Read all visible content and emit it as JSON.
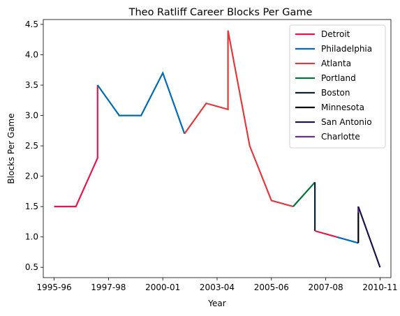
{
  "chart_data": {
    "type": "line",
    "title": "Theo Ratliff Career Blocks Per Game",
    "xlabel": "Year",
    "ylabel": "Blocks Per Game",
    "xlim": [
      -0.5,
      15.5
    ],
    "ylim": [
      0.33,
      4.58
    ],
    "x_ticks": [
      {
        "x": 0,
        "label": "1995-96"
      },
      {
        "x": 2.5,
        "label": "1997-98"
      },
      {
        "x": 5,
        "label": "2000-01"
      },
      {
        "x": 7.5,
        "label": "2003-04"
      },
      {
        "x": 10,
        "label": "2005-06"
      },
      {
        "x": 12.5,
        "label": "2007-08"
      },
      {
        "x": 15,
        "label": "2010-11"
      }
    ],
    "y_ticks": [
      0.5,
      1.0,
      1.5,
      2.0,
      2.5,
      3.0,
      3.5,
      4.0,
      4.5
    ],
    "y_tick_labels": [
      "0.5",
      "1.0",
      "1.5",
      "2.0",
      "2.5",
      "3.0",
      "3.5",
      "4.0",
      "4.5"
    ],
    "grid": false,
    "legend_position": "top-right",
    "series": [
      {
        "name": "Detroit",
        "color": "#e8174a",
        "points": [
          [
            0,
            1.5
          ],
          [
            1,
            1.5
          ],
          [
            2,
            2.3
          ],
          [
            2,
            3.5
          ]
        ]
      },
      {
        "name": "Philadelphia",
        "color": "#006bb6",
        "points": [
          [
            2,
            3.5
          ],
          [
            3,
            3.0
          ],
          [
            4,
            3.0
          ],
          [
            5,
            3.7
          ],
          [
            6,
            2.7
          ]
        ]
      },
      {
        "name": "Atlanta",
        "color": "#e03a3e",
        "points": [
          [
            6,
            2.7
          ],
          [
            7,
            3.2
          ],
          [
            8,
            3.1
          ],
          [
            8,
            4.4
          ],
          [
            9,
            2.5
          ],
          [
            10,
            1.6
          ],
          [
            11,
            1.5
          ]
        ]
      },
      {
        "name": "Portland",
        "color": "#00713a",
        "points": [
          [
            11,
            1.5
          ],
          [
            12,
            1.9
          ]
        ]
      },
      {
        "name": "Boston",
        "color": "#0c2233",
        "points": [
          [
            12,
            1.9
          ],
          [
            12,
            1.1
          ]
        ]
      },
      {
        "name": "Detroit",
        "color": "#e8174a",
        "points": [
          [
            12,
            1.1
          ],
          [
            13,
            1.0
          ]
        ]
      },
      {
        "name": "Philadelphia",
        "color": "#006bb6",
        "points": [
          [
            13,
            1.0
          ],
          [
            14,
            0.9
          ]
        ]
      },
      {
        "name": "Minnesota",
        "color": "#000000",
        "points": [
          [
            14,
            0.9
          ],
          [
            14,
            1.5
          ]
        ]
      },
      {
        "name": "Charlotte",
        "color": "#6b2e92",
        "points": [
          [
            14,
            1.5
          ],
          [
            14,
            1.4
          ]
        ]
      },
      {
        "name": "San Antonio",
        "color": "#1b1448",
        "points": [
          [
            14,
            1.5
          ],
          [
            15,
            0.5
          ]
        ]
      }
    ],
    "legend": [
      {
        "name": "Detroit",
        "color": "#e8174a"
      },
      {
        "name": "Philadelphia",
        "color": "#006bb6"
      },
      {
        "name": "Atlanta",
        "color": "#e03a3e"
      },
      {
        "name": "Portland",
        "color": "#00713a"
      },
      {
        "name": "Boston",
        "color": "#0c2233"
      },
      {
        "name": "Minnesota",
        "color": "#000000"
      },
      {
        "name": "San Antonio",
        "color": "#1b1448"
      },
      {
        "name": "Charlotte",
        "color": "#6b2e92"
      }
    ]
  }
}
